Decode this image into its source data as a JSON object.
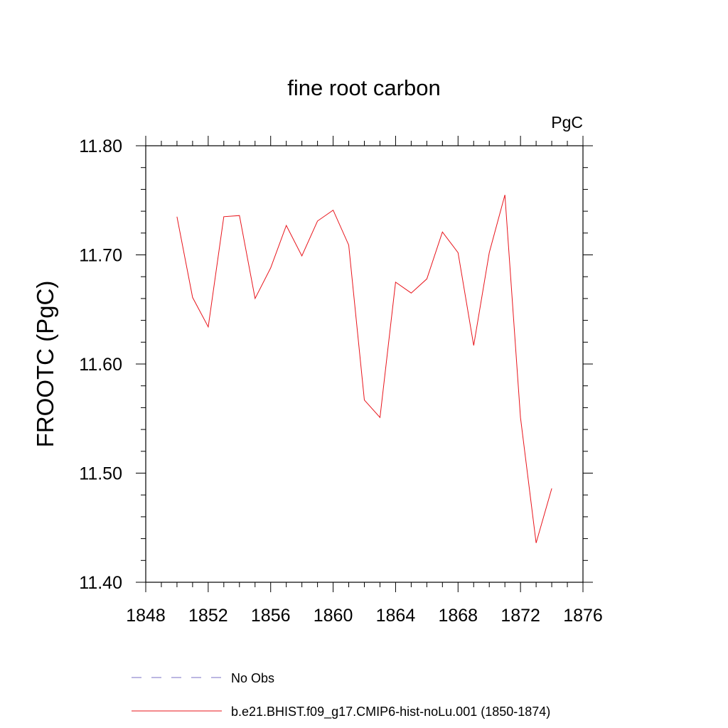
{
  "chart_data": {
    "type": "line",
    "title": "fine root carbon",
    "units_label": "PgC",
    "ylabel": "FROOTC  (PgC)",
    "xlabel": "",
    "xlim": [
      1848,
      1876
    ],
    "ylim": [
      11.4,
      11.8
    ],
    "x_ticks": [
      1848,
      1852,
      1856,
      1860,
      1864,
      1868,
      1872,
      1876
    ],
    "y_ticks": [
      "11.40",
      "11.50",
      "11.60",
      "11.70",
      "11.80"
    ],
    "grid": false,
    "legend_position": "bottom",
    "series": [
      {
        "name": "b.e21.BHIST.f09_g17.CMIP6-hist-noLu.001 (1850-1874)",
        "color": "#e8141b",
        "style": "solid",
        "x": [
          1850,
          1851,
          1852,
          1853,
          1854,
          1855,
          1856,
          1857,
          1858,
          1859,
          1860,
          1861,
          1862,
          1863,
          1864,
          1865,
          1866,
          1867,
          1868,
          1869,
          1870,
          1871,
          1872,
          1873,
          1874
        ],
        "values": [
          11.735,
          11.661,
          11.634,
          11.735,
          11.736,
          11.66,
          11.688,
          11.727,
          11.699,
          11.731,
          11.741,
          11.709,
          11.567,
          11.551,
          11.675,
          11.665,
          11.678,
          11.721,
          11.702,
          11.617,
          11.702,
          11.755,
          11.551,
          11.436,
          11.486
        ]
      }
    ],
    "legend": [
      {
        "label": "No Obs",
        "color": "#7a6fc4",
        "style": "dashed"
      },
      {
        "label": "b.e21.BHIST.f09_g17.CMIP6-hist-noLu.001 (1850-1874)",
        "color": "#e8141b",
        "style": "solid"
      }
    ]
  }
}
